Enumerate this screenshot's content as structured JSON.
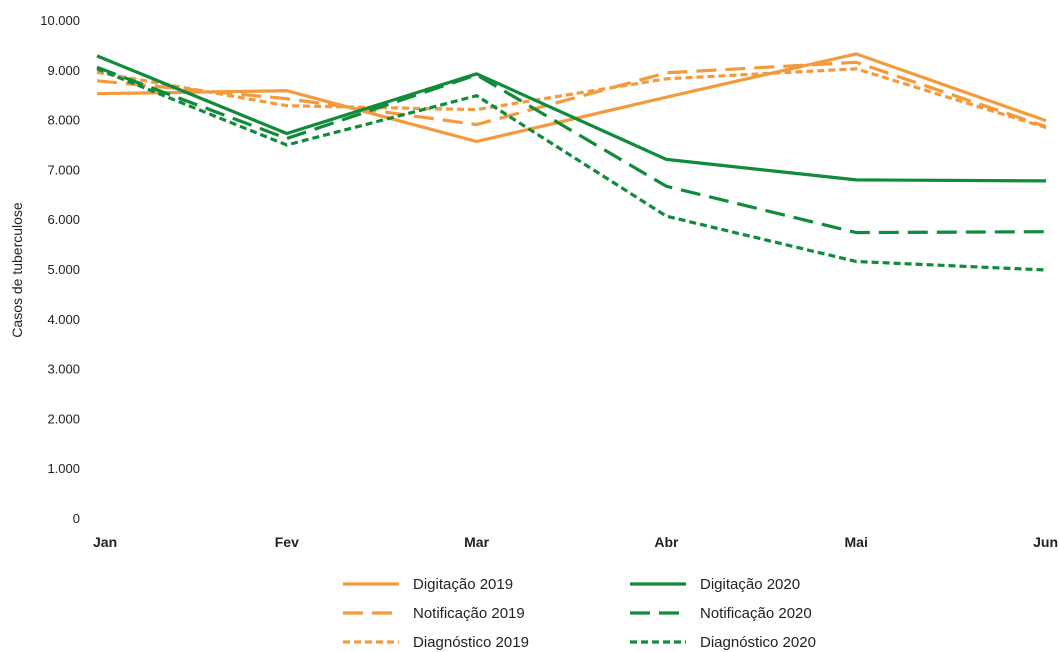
{
  "chart_data": {
    "type": "line",
    "ylabel": "Casos de tuberculose",
    "ylim": [
      0,
      10000
    ],
    "yticks": [
      "0",
      "1.000",
      "2.000",
      "3.000",
      "4.000",
      "5.000",
      "6.000",
      "7.000",
      "8.000",
      "9.000",
      "10.000"
    ],
    "categories": [
      "Jan",
      "Fev",
      "Mar",
      "Abr",
      "Mai",
      "Jun"
    ],
    "grid": false,
    "legend_placement": "bottom",
    "series": [
      {
        "name": "Digitação 2019",
        "color": "#f39a3c",
        "style": "solid",
        "values": [
          8520,
          8580,
          7560,
          8450,
          9320,
          7980
        ]
      },
      {
        "name": "Notificação 2019",
        "color": "#f39a3c",
        "style": "dashed",
        "values": [
          8780,
          8420,
          7900,
          8940,
          9150,
          7860
        ]
      },
      {
        "name": "Diagnóstico 2019",
        "color": "#f39a3c",
        "style": "dotted",
        "values": [
          8950,
          8280,
          8200,
          8820,
          9020,
          7840
        ]
      },
      {
        "name": "Digitação 2020",
        "color": "#0f8b3b",
        "style": "solid",
        "values": [
          9280,
          7720,
          8920,
          7200,
          6790,
          6770
        ]
      },
      {
        "name": "Notificação 2020",
        "color": "#0f8b3b",
        "style": "dashed",
        "values": [
          9050,
          7620,
          8900,
          6660,
          5730,
          5750
        ]
      },
      {
        "name": "Diagnóstico 2020",
        "color": "#0f8b3b",
        "style": "dotted",
        "values": [
          9020,
          7490,
          8480,
          6060,
          5150,
          4980
        ]
      }
    ]
  }
}
